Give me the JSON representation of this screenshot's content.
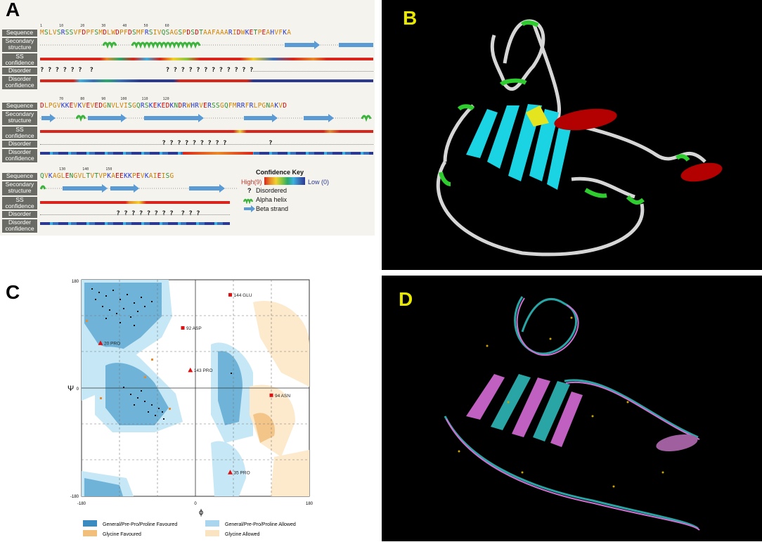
{
  "panel_labels": {
    "a": "A",
    "b": "B",
    "c": "C",
    "d": "D"
  },
  "panelA": {
    "row_labels": {
      "sequence": "Sequence",
      "secondary": "Secondary structure",
      "ss_conf": "SS confidence",
      "disorder": "Disorder",
      "disorder_conf": "Disorder confidence"
    },
    "blocks": [
      {
        "ticks": "1        10        20        30        40        50        60",
        "sequence": "MSLVSRSSVFDPFSMDLWDPFDSMFRSIVQSAGSPDSDTAAFAAARIDWKETPEAHVFKA",
        "disorder": "? ? ? ? ? ?  ?                   ? ? ? ? ? ? ? ? ? ? ? ?"
      },
      {
        "ticks": "         70        80        90       100       110       120",
        "sequence": "DLPGVKKEVKVEVEDGNVLVISGQRSKEKEDKNDRWHRVERSSGQFMRRFRLPGNAKVD",
        "disorder": "                                ? ? ? ? ? ? ? ? ?           ?"
      },
      {
        "ticks": "         130        140        150",
        "sequence": "QVKAGLENGVLTVTVPKAEEKKPEVKAIEISG",
        "disorder": "                    ? ? ? ? ? ? ? ?  ? ? ?"
      }
    ],
    "confidence_key": {
      "title": "Confidence Key",
      "high": "High(9)",
      "low": "Low (0)",
      "disordered_symbol": "?",
      "disordered": "Disordered",
      "alpha_helix": "Alpha helix",
      "beta_strand": "Beta strand"
    }
  },
  "panelC": {
    "axis_labels": {
      "x": "ϕ",
      "y": "Ψ"
    },
    "x_ticks": [
      "-180",
      "0",
      "180"
    ],
    "y_ticks": [
      "180",
      "0",
      "-180"
    ],
    "outliers": [
      {
        "label": "144 GLU",
        "phi": 55,
        "psi": 155,
        "marker": "square"
      },
      {
        "label": "92 ASP",
        "phi": -20,
        "psi": 100,
        "marker": "square"
      },
      {
        "label": "20 PRO",
        "phi": -150,
        "psi": 75,
        "marker": "triangle"
      },
      {
        "label": "143 PRO",
        "phi": -8,
        "psi": 30,
        "marker": "triangle"
      },
      {
        "label": "94 ASN",
        "phi": 120,
        "psi": -12,
        "marker": "square"
      },
      {
        "label": "35 PRO",
        "phi": 55,
        "psi": -140,
        "marker": "triangle"
      }
    ],
    "legend": [
      {
        "label": "General/Pre-Pro/Proline Favoured",
        "color": "#3a8bbf"
      },
      {
        "label": "General/Pre-Pro/Proline Allowed",
        "color": "#a9d6ee"
      },
      {
        "label": "Glycine Favoured",
        "color": "#f1bf7a"
      },
      {
        "label": "Glycine Allowed",
        "color": "#fae3c0"
      }
    ]
  },
  "colors": {
    "helix": "#3cb33c",
    "strand": "#5b9bd5",
    "disordered_q": "#111111",
    "rama_general_fav": "#6fb4d8",
    "rama_general_allowed": "#c6e7f5",
    "rama_gly_fav": "#f3c589",
    "rama_gly_allowed": "#fde9cc",
    "structure_strand": "#1ad3e3",
    "structure_helix": "#b30000",
    "structure_coil": "#d6d6d6",
    "structure_turn": "#2ecc2e"
  }
}
